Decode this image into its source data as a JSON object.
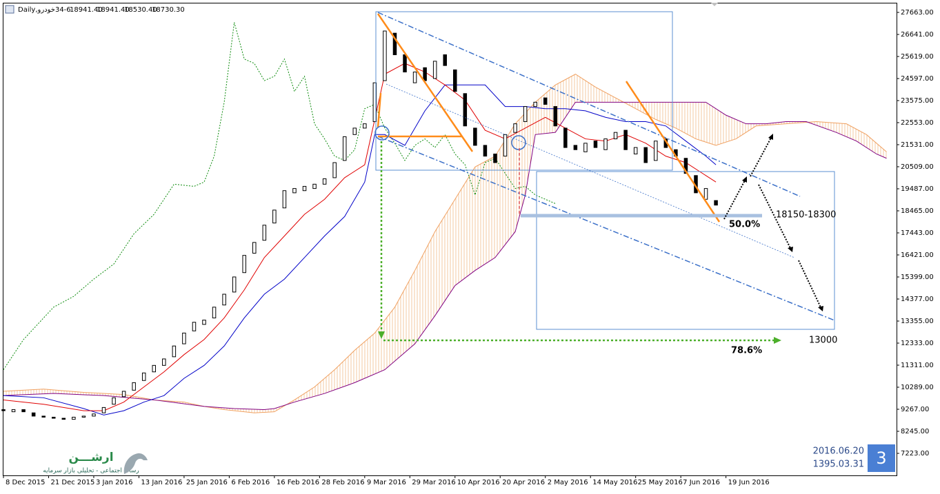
{
  "chart_data": {
    "type": "candlestick",
    "header": {
      "symbol": "34-6خودرو,Daily",
      "ohlc": [
        "18941.40",
        "18941.40",
        "18530.40",
        "18730.30"
      ]
    },
    "x": [
      0,
      2,
      4,
      6,
      8,
      10,
      12,
      14,
      16,
      18,
      20,
      22,
      24,
      26,
      28,
      30,
      32,
      34,
      36,
      38,
      40,
      42,
      44,
      46,
      48,
      50,
      52,
      54,
      56,
      58,
      60,
      62,
      64,
      66,
      68,
      70,
      72,
      74,
      76,
      78,
      80,
      82,
      84,
      86,
      88,
      90,
      92,
      94,
      96,
      98,
      100,
      102,
      104,
      106,
      108,
      110,
      112,
      114,
      116,
      118,
      120,
      122,
      124,
      126,
      128,
      130,
      132,
      134,
      136,
      138,
      140,
      142
    ],
    "open": [
      9250,
      9150,
      9250,
      9100,
      8950,
      8900,
      8850,
      8800,
      8900,
      8950,
      9100,
      9500,
      9850,
      10150,
      10600,
      11000,
      11300,
      11700,
      12300,
      12900,
      13200,
      13500,
      14100,
      14700,
      15600,
      16500,
      17100,
      17900,
      18600,
      19300,
      19400,
      19500,
      19700,
      20000,
      20800,
      22000,
      22300,
      22600,
      24500,
      26700,
      25700,
      24400,
      25100,
      24600,
      25700,
      25000,
      23900,
      22300,
      21500,
      21100,
      21000,
      22100,
      22600,
      23300,
      23700,
      23300,
      22300,
      21500,
      21200,
      21700,
      21300,
      21800,
      22200,
      21100,
      21400,
      20800,
      21800,
      21300,
      20900,
      20100,
      19000,
      18941.4
    ],
    "close": [
      9200,
      9250,
      9150,
      8950,
      8900,
      8850,
      8800,
      8900,
      8950,
      9050,
      9350,
      9800,
      10100,
      10500,
      10950,
      11300,
      11600,
      12200,
      12800,
      13300,
      13400,
      14000,
      14600,
      15400,
      16400,
      17000,
      17800,
      18500,
      19400,
      19500,
      19600,
      19700,
      19950,
      20700,
      21900,
      22300,
      22500,
      24400,
      26800,
      25700,
      24900,
      24900,
      24500,
      25400,
      25200,
      24000,
      22400,
      21500,
      21000,
      20700,
      22000,
      22500,
      23300,
      23500,
      23400,
      22400,
      21400,
      21300,
      21600,
      21400,
      21800,
      22100,
      21300,
      21400,
      20700,
      21700,
      21400,
      21000,
      20200,
      19300,
      19500,
      18730.3
    ],
    "up_color": "#ffffff",
    "down_color": "#000000",
    "tenkan": {
      "color": "#e00000",
      "x": [
        0,
        8,
        16,
        20,
        24,
        28,
        32,
        36,
        40,
        44,
        48,
        52,
        56,
        60,
        64,
        68,
        72,
        76,
        80,
        84,
        88,
        92,
        96,
        100,
        104,
        108,
        112,
        116,
        120,
        124,
        128,
        132,
        136,
        140,
        142
      ],
      "values": [
        9700,
        9500,
        9200,
        9200,
        9600,
        10300,
        11000,
        11800,
        12500,
        13500,
        14800,
        16300,
        17300,
        18300,
        19000,
        20000,
        20600,
        24800,
        25300,
        24900,
        24300,
        23600,
        22200,
        21800,
        22300,
        22800,
        22300,
        21800,
        21700,
        22000,
        21600,
        21000,
        20700,
        20100,
        19800
      ]
    },
    "kijun": {
      "color": "#0000c8",
      "x": [
        0,
        8,
        16,
        20,
        24,
        28,
        32,
        36,
        40,
        44,
        48,
        52,
        56,
        60,
        64,
        68,
        72,
        74,
        76,
        80,
        84,
        88,
        92,
        96,
        100,
        104,
        108,
        112,
        116,
        120,
        124,
        128,
        132,
        136,
        140,
        142
      ],
      "values": [
        9900,
        9800,
        9300,
        9000,
        9200,
        9600,
        9900,
        10700,
        11300,
        12200,
        13500,
        14600,
        15300,
        16300,
        17300,
        18200,
        19800,
        22000,
        22000,
        21500,
        23100,
        24300,
        24300,
        24300,
        23300,
        23300,
        23200,
        23200,
        23100,
        22800,
        22600,
        22600,
        22400,
        21700,
        21000,
        20600
      ]
    },
    "chikou": {
      "color": "#0a8a0a",
      "x": [
        0,
        4,
        8,
        10,
        14,
        18,
        22,
        26,
        30,
        34,
        38,
        40,
        42,
        44,
        46,
        48,
        50,
        52,
        54,
        56,
        58,
        60,
        62,
        64,
        66,
        68,
        70,
        72,
        74,
        76,
        78,
        80,
        82,
        84,
        86,
        88,
        90,
        92,
        94,
        96,
        98,
        100,
        102,
        104,
        106,
        110
      ],
      "values": [
        11100,
        12500,
        13500,
        14000,
        14500,
        15300,
        16000,
        17400,
        18300,
        19700,
        19600,
        19800,
        21000,
        23500,
        27200,
        25500,
        25300,
        24500,
        24700,
        25500,
        24000,
        24700,
        22500,
        21800,
        21000,
        20800,
        21300,
        23200,
        23400,
        22300,
        21600,
        20800,
        21500,
        21800,
        21400,
        22000,
        21100,
        20600,
        19200,
        20700,
        20900,
        20200,
        19500,
        19600,
        19200,
        18800
      ]
    },
    "senkou_a": {
      "color": "#f0a060",
      "x": [
        0,
        8,
        16,
        24,
        30,
        36,
        40,
        44,
        50,
        54,
        58,
        62,
        66,
        70,
        74,
        78,
        82,
        86,
        90,
        94,
        98,
        102,
        106,
        110,
        114,
        118,
        122,
        126,
        130,
        134,
        138,
        142,
        146,
        150,
        156,
        162,
        168,
        172,
        176
      ],
      "values": [
        10100,
        10200,
        10050,
        9950,
        9700,
        9600,
        9400,
        9250,
        9100,
        9150,
        9700,
        10300,
        11100,
        12000,
        12800,
        14000,
        15700,
        17500,
        19000,
        20500,
        21000,
        22500,
        23500,
        24300,
        24800,
        24200,
        23700,
        23200,
        22700,
        22300,
        21800,
        21500,
        21800,
        22400,
        22500,
        22600,
        22500,
        22000,
        21200
      ]
    },
    "senkou_b": {
      "color": "#800080",
      "x": [
        0,
        10,
        20,
        30,
        40,
        46,
        52,
        54,
        58,
        64,
        70,
        76,
        82,
        86,
        90,
        94,
        98,
        102,
        104,
        106,
        110,
        114,
        120,
        126,
        132,
        136,
        140,
        144,
        148,
        152,
        156,
        160,
        166,
        170,
        174,
        176
      ],
      "values": [
        9900,
        10000,
        9900,
        9700,
        9400,
        9300,
        9250,
        9300,
        9600,
        10000,
        10500,
        11100,
        12300,
        13600,
        15000,
        15700,
        16300,
        17500,
        19200,
        22000,
        22100,
        23500,
        23500,
        23500,
        23500,
        23500,
        23500,
        22900,
        22500,
        22500,
        22600,
        22600,
        22100,
        21700,
        21100,
        20900
      ]
    },
    "xlim": [
      0,
      178
    ],
    "xticks": [
      {
        "value": 0,
        "label": "8 Dec 2015"
      },
      {
        "value": 9,
        "label": "21 Dec 2015"
      },
      {
        "value": 18,
        "label": "3 Jan 2016"
      },
      {
        "value": 27,
        "label": "13 Jan 2016"
      },
      {
        "value": 36,
        "label": "25 Jan 2016"
      },
      {
        "value": 45,
        "label": "6 Feb 2016"
      },
      {
        "value": 54,
        "label": "16 Feb 2016"
      },
      {
        "value": 63,
        "label": "28 Feb 2016"
      },
      {
        "value": 72,
        "label": "9 Mar 2016"
      },
      {
        "value": 81,
        "label": "29 Mar 2016"
      },
      {
        "value": 90,
        "label": "10 Apr 2016"
      },
      {
        "value": 99,
        "label": "20 Apr 2016"
      },
      {
        "value": 108,
        "label": "2 May 2016"
      },
      {
        "value": 117,
        "label": "14 May 2016"
      },
      {
        "value": 126,
        "label": "25 May 2016"
      },
      {
        "value": 135,
        "label": "7 Jun 2016"
      },
      {
        "value": 144,
        "label": "19 Jun 2016"
      }
    ],
    "ylim": [
      6201,
      28078
    ],
    "yticks": [
      {
        "value": 27663,
        "label": "27663.00"
      },
      {
        "value": 26641,
        "label": "26641.00"
      },
      {
        "value": 25619,
        "label": "25619.00"
      },
      {
        "value": 24597,
        "label": "24597.00"
      },
      {
        "value": 23575,
        "label": "23575.00"
      },
      {
        "value": 22553,
        "label": "22553.00"
      },
      {
        "value": 21531,
        "label": "21531.00"
      },
      {
        "value": 20509,
        "label": "20509.00"
      },
      {
        "value": 19487,
        "label": "19487.00"
      },
      {
        "value": 18465,
        "label": "18465.00"
      },
      {
        "value": 17443,
        "label": "17443.00"
      },
      {
        "value": 16421,
        "label": "16421.00"
      },
      {
        "value": 15399,
        "label": "15399.00"
      },
      {
        "value": 14377,
        "label": "14377.00"
      },
      {
        "value": 13355,
        "label": "13355.00"
      },
      {
        "value": 12333,
        "label": "12333.00"
      },
      {
        "value": 11311,
        "label": "11311.00"
      },
      {
        "value": 10289,
        "label": "10289.00"
      },
      {
        "value": 9267,
        "label": "9267.00"
      },
      {
        "value": 8245,
        "label": "8245.00"
      },
      {
        "value": 7223,
        "label": "7223.00"
      }
    ],
    "annotations": {
      "zone": "18150-18300",
      "fib_50": "50.0%",
      "target": "13000",
      "fib_786": "78.6%"
    },
    "date_box": {
      "gregorian": "2016.06.20",
      "persian": "1395.03.31"
    },
    "badge": "3",
    "logo": {
      "name": "ارشـــن",
      "tagline": "رسانه اجتماعی - تحلیلی بازار سرمایه"
    }
  }
}
